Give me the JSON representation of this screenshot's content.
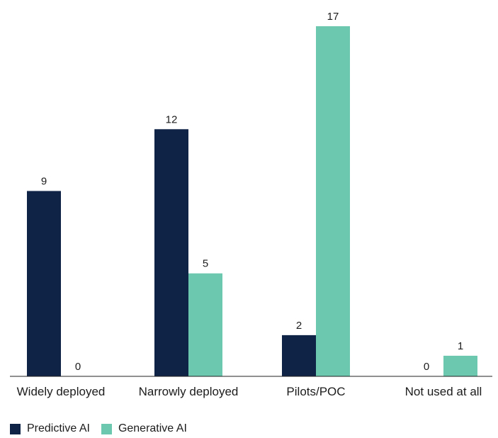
{
  "chart_data": {
    "type": "bar",
    "categories": [
      "Widely deployed",
      "Narrowly deployed",
      "Pilots/POC",
      "Not used at all"
    ],
    "series": [
      {
        "name": "Predictive AI",
        "values": [
          9,
          12,
          2,
          0
        ],
        "color": "#0f2347"
      },
      {
        "name": "Generative AI",
        "values": [
          0,
          5,
          17,
          1
        ],
        "color": "#6cc9b0"
      }
    ],
    "ylim": [
      0,
      17
    ],
    "grid": false,
    "legend_position": "bottom-left",
    "data_labels": true
  }
}
